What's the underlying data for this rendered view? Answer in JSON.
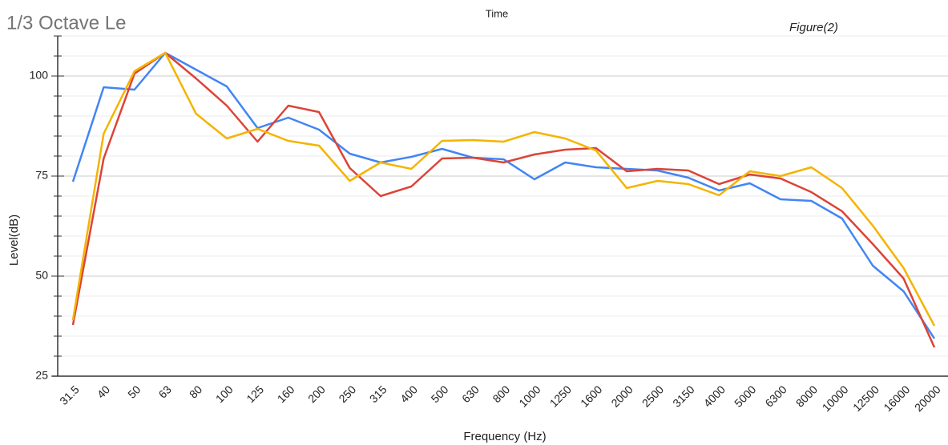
{
  "chart_data": {
    "type": "line",
    "title": "1/3 Octave Le",
    "subtitle": "Time",
    "annotation": "Figure(2)",
    "x_label": "Frequency (Hz)",
    "y_label": "Level(dB)",
    "categories": [
      "31.5",
      "40",
      "50",
      "63",
      "80",
      "100",
      "125",
      "160",
      "200",
      "250",
      "315",
      "400",
      "500",
      "630",
      "800",
      "1000",
      "1250",
      "1600",
      "2000",
      "2500",
      "3150",
      "4000",
      "5000",
      "6300",
      "8000",
      "10000",
      "12500",
      "16000",
      "20000"
    ],
    "series": [
      {
        "color": "#4285f4",
        "values": [
          73.6,
          97.2,
          96.6,
          105.8,
          101.6,
          97.4,
          87,
          89.6,
          86.6,
          80.6,
          78.4,
          79.8,
          81.8,
          79.6,
          79.2,
          74.2,
          78.4,
          77.2,
          76.8,
          76.4,
          74.6,
          71.4,
          73.2,
          69.2,
          68.8,
          64.4,
          52.6,
          46.2,
          34.4
        ]
      },
      {
        "color": "#db4437",
        "values": [
          37.8,
          79.4,
          100.6,
          105.8,
          99.4,
          92.6,
          83.6,
          92.6,
          91,
          77,
          70,
          72.4,
          79.4,
          79.6,
          78.4,
          80.4,
          81.6,
          82,
          76.2,
          76.8,
          76.4,
          73,
          75.4,
          74.4,
          71,
          66.2,
          58,
          49.4,
          32.2
        ]
      },
      {
        "color": "#f4b400",
        "values": [
          39,
          85.6,
          101.2,
          105.8,
          90.6,
          84.4,
          86.8,
          83.8,
          82.6,
          73.8,
          78.4,
          76.8,
          83.8,
          84,
          83.6,
          86,
          84.4,
          81.4,
          72,
          73.8,
          73,
          70.2,
          76.2,
          75,
          77.2,
          72,
          62.6,
          52,
          37.6
        ]
      }
    ],
    "ylim": [
      25,
      110
    ],
    "yticks": [
      25,
      50,
      75,
      100
    ],
    "minor_yticks": [
      30,
      35,
      40,
      45,
      55,
      60,
      65,
      70,
      80,
      85,
      90,
      95,
      105,
      110
    ],
    "grid": true
  }
}
